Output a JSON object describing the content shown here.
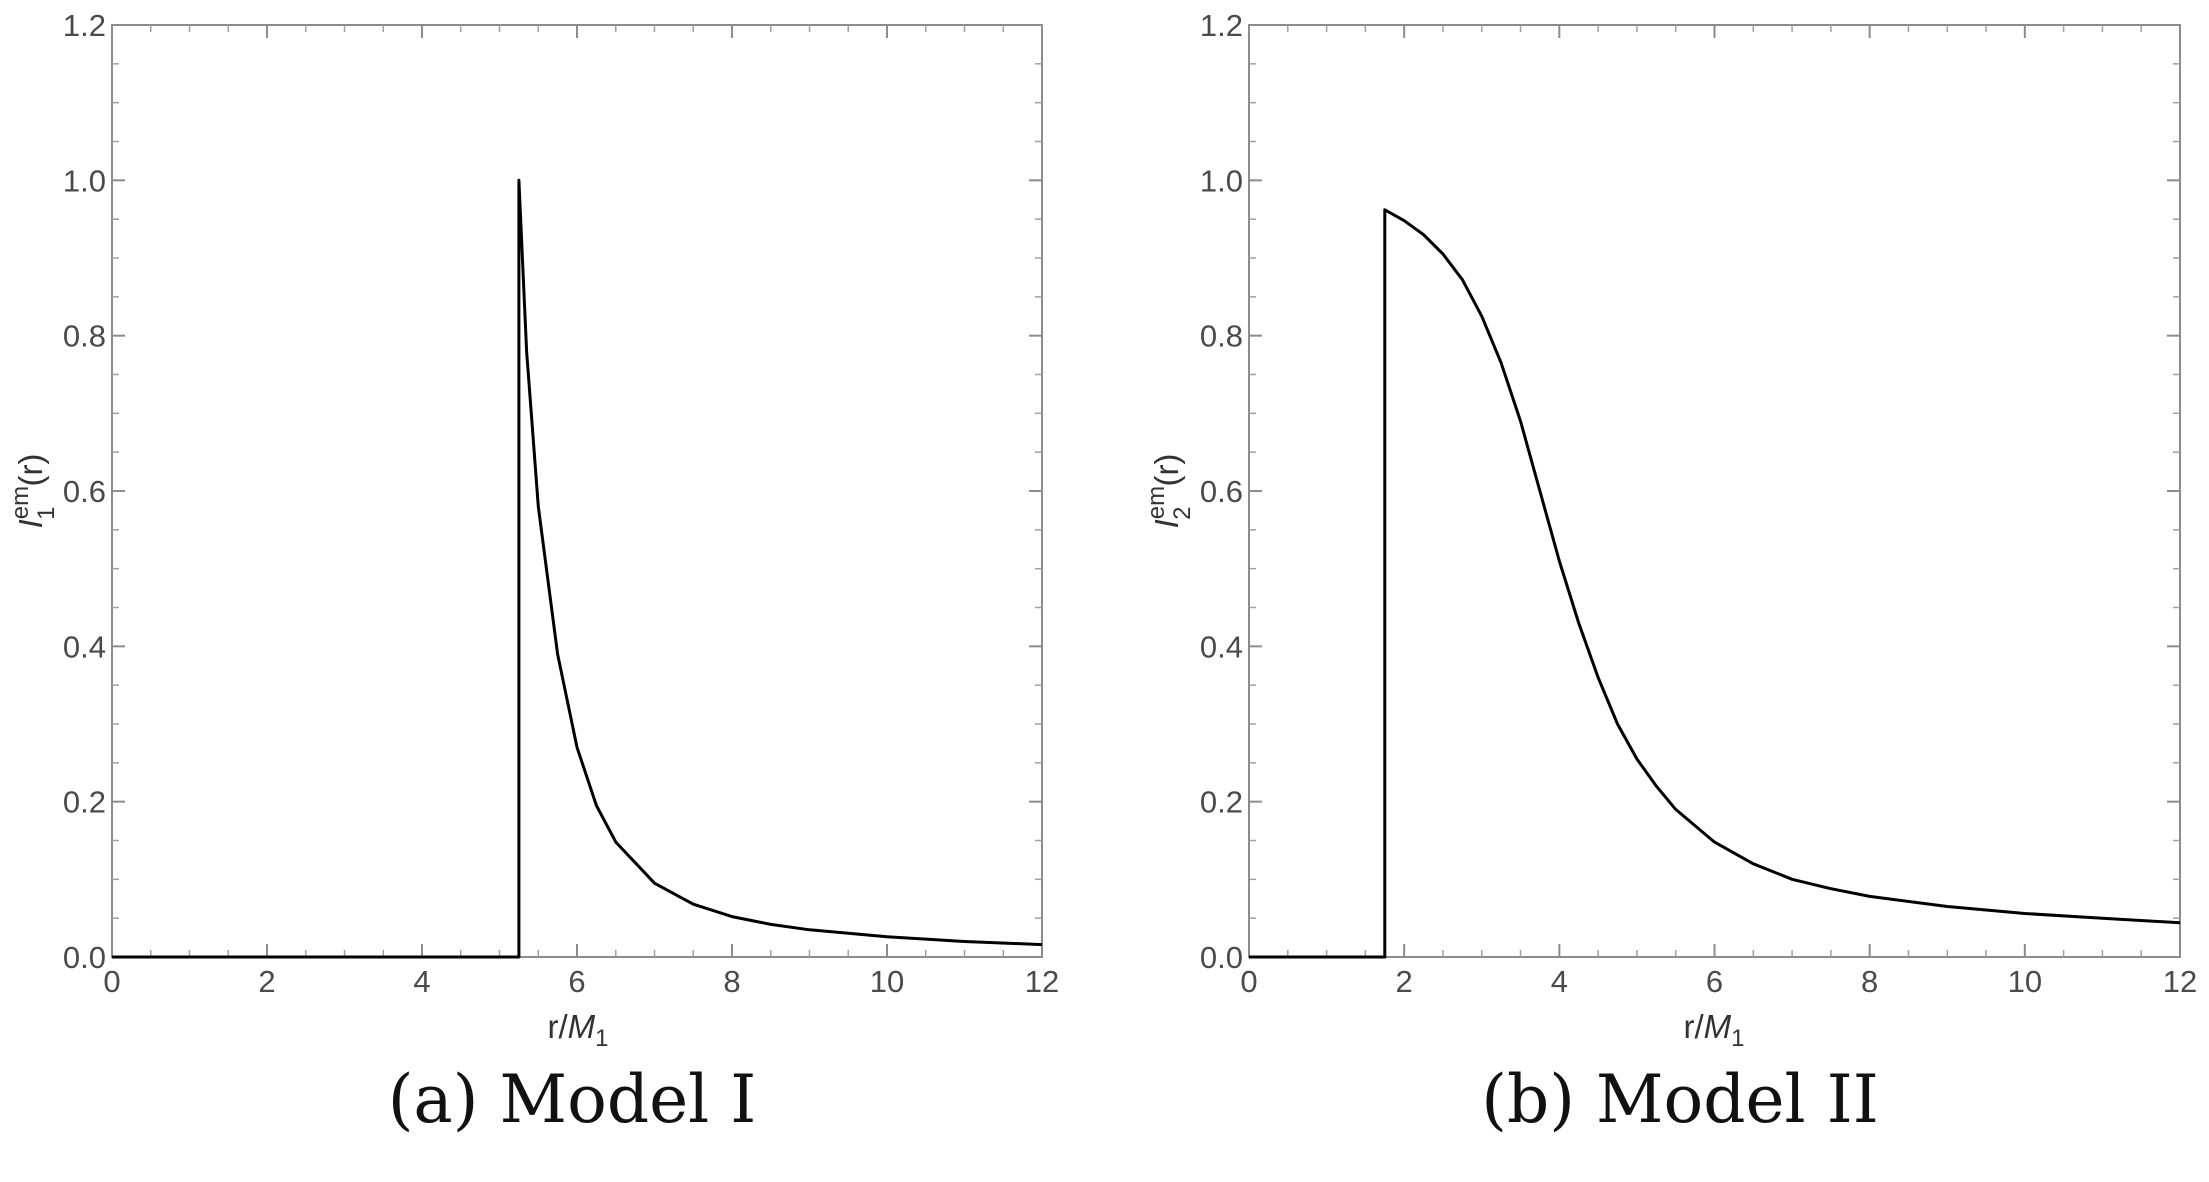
{
  "chart_data": [
    {
      "type": "line",
      "caption": "(a) Model I",
      "xlabel_main": "r/",
      "xlabel_sym": "M",
      "xlabel_sub": "1",
      "ylabel_main": "I",
      "ylabel_sup": "em",
      "ylabel_sub": "1",
      "ylabel_arg": "(r)",
      "xlim": [
        0,
        12
      ],
      "ylim": [
        0,
        1.2
      ],
      "xticks": [
        0,
        2,
        4,
        6,
        8,
        10,
        12
      ],
      "yticks": [
        0.0,
        0.2,
        0.4,
        0.6,
        0.8,
        1.0,
        1.2
      ],
      "xtick_labels": [
        "0",
        "2",
        "4",
        "6",
        "8",
        "10",
        "12"
      ],
      "ytick_labels": [
        "0.0",
        "0.2",
        "0.4",
        "0.6",
        "0.8",
        "1.0",
        "1.2"
      ],
      "series": [
        {
          "color": "#000000",
          "x": [
            0,
            5.25,
            5.25,
            5.35,
            5.5,
            5.75,
            6.0,
            6.25,
            6.5,
            7.0,
            7.5,
            8.0,
            8.5,
            9.0,
            10.0,
            11.0,
            12.0
          ],
          "y": [
            0,
            0,
            1.0,
            0.78,
            0.58,
            0.39,
            0.27,
            0.195,
            0.148,
            0.095,
            0.068,
            0.052,
            0.042,
            0.035,
            0.026,
            0.02,
            0.016
          ]
        }
      ]
    },
    {
      "type": "line",
      "caption": "(b) Model II",
      "xlabel_main": "r/",
      "xlabel_sym": "M",
      "xlabel_sub": "1",
      "ylabel_main": "I",
      "ylabel_sup": "em",
      "ylabel_sub": "2",
      "ylabel_arg": "(r)",
      "xlim": [
        0,
        12
      ],
      "ylim": [
        0,
        1.2
      ],
      "xticks": [
        0,
        2,
        4,
        6,
        8,
        10,
        12
      ],
      "yticks": [
        0.0,
        0.2,
        0.4,
        0.6,
        0.8,
        1.0,
        1.2
      ],
      "xtick_labels": [
        "0",
        "2",
        "4",
        "6",
        "8",
        "10",
        "12"
      ],
      "ytick_labels": [
        "0.0",
        "0.2",
        "0.4",
        "0.6",
        "0.8",
        "1.0",
        "1.2"
      ],
      "series": [
        {
          "color": "#000000",
          "x": [
            0,
            1.75,
            1.75,
            2.0,
            2.25,
            2.5,
            2.75,
            3.0,
            3.25,
            3.5,
            3.75,
            4.0,
            4.25,
            4.5,
            4.75,
            5.0,
            5.25,
            5.5,
            6.0,
            6.5,
            7.0,
            7.5,
            8.0,
            9.0,
            10.0,
            11.0,
            12.0
          ],
          "y": [
            0,
            0,
            0.962,
            0.948,
            0.93,
            0.905,
            0.872,
            0.825,
            0.765,
            0.69,
            0.6,
            0.51,
            0.43,
            0.36,
            0.3,
            0.255,
            0.22,
            0.19,
            0.148,
            0.12,
            0.1,
            0.088,
            0.078,
            0.065,
            0.056,
            0.05,
            0.044
          ]
        }
      ]
    }
  ]
}
